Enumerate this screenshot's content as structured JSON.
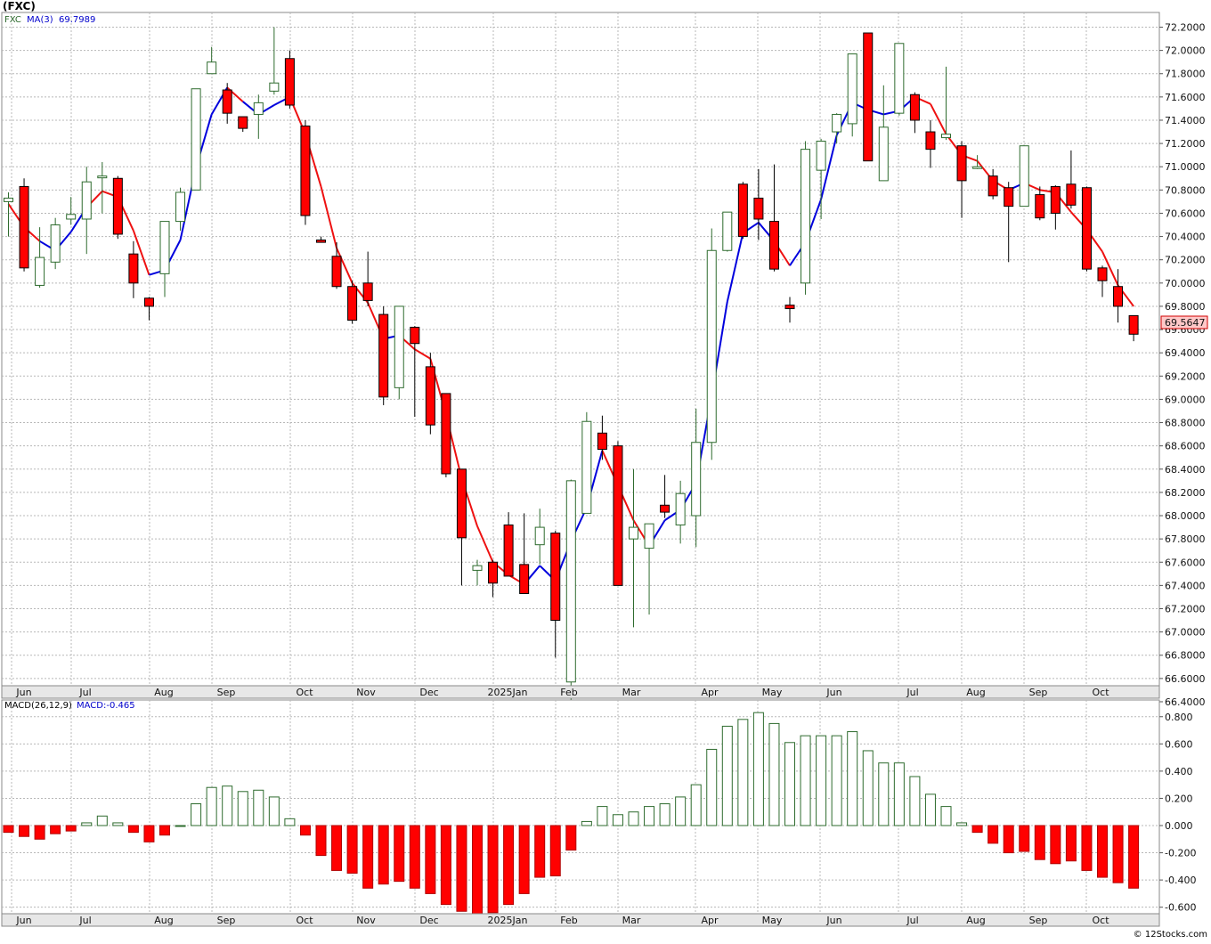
{
  "header": {
    "symbol_label": "(FXC)"
  },
  "price_panel": {
    "series_label": "FXC",
    "ma_label": "MA(3)",
    "ma_value": "69.7989",
    "last_price_label": "69.5647",
    "y_ticks": [
      "72.2000",
      "72.0000",
      "71.8000",
      "71.6000",
      "71.4000",
      "71.2000",
      "71.0000",
      "70.8000",
      "70.6000",
      "70.4000",
      "70.2000",
      "70.0000",
      "69.8000",
      "69.6000",
      "69.4000",
      "69.2000",
      "69.0000",
      "68.8000",
      "68.6000",
      "68.4000",
      "68.2000",
      "68.0000",
      "67.8000",
      "67.6000",
      "67.4000",
      "67.2000",
      "67.0000",
      "66.8000",
      "66.6000",
      "66.4000"
    ],
    "x_labels": [
      "Jun",
      "Jul",
      "Aug",
      "Sep",
      "Oct",
      "Nov",
      "Dec",
      "2025Jan",
      "Feb",
      "Mar",
      "Apr",
      "May",
      "Jun",
      "Jul",
      "Aug",
      "Sep",
      "Oct"
    ]
  },
  "macd_panel": {
    "label": "MACD(26,12,9)",
    "value_label": "MACD:-0.465",
    "y_ticks": [
      "0.800",
      "0.600",
      "0.400",
      "0.200",
      "0.000",
      "-0.200",
      "-0.400",
      "-0.600"
    ],
    "x_labels": [
      "Jun",
      "Jul",
      "Aug",
      "Sep",
      "Oct",
      "Nov",
      "Dec",
      "2025Jan",
      "Feb",
      "Mar",
      "Apr",
      "May",
      "Jun",
      "Jul",
      "Aug",
      "Sep",
      "Oct"
    ]
  },
  "footer": {
    "credit": "© 12Stocks.com"
  },
  "colors": {
    "up": "#2e6b2e",
    "down": "#ff0000",
    "ma_up": "#0000dd",
    "ma_down": "#ee1111",
    "grid": "#b8b8b8"
  },
  "chart_data": [
    {
      "type": "candlestick",
      "title": "(FXC)",
      "series_name": "FXC",
      "ylim": [
        66.35,
        72.25
      ],
      "x_month_labels": [
        "Jun",
        "Jul",
        "Aug",
        "Sep",
        "Oct",
        "Nov",
        "Dec",
        "2025Jan",
        "Feb",
        "Mar",
        "Apr",
        "May",
        "Jun",
        "Jul",
        "Aug",
        "Sep",
        "Oct"
      ],
      "ohlc": [
        [
          70.7,
          70.78,
          70.4,
          70.73
        ],
        [
          70.83,
          70.9,
          70.1,
          70.13
        ],
        [
          69.98,
          70.48,
          69.96,
          70.22
        ],
        [
          70.18,
          70.56,
          70.12,
          70.5
        ],
        [
          70.55,
          70.74,
          70.5,
          70.59
        ],
        [
          70.55,
          71.0,
          70.25,
          70.87
        ],
        [
          70.92,
          71.04,
          70.6,
          70.92
        ],
        [
          70.9,
          70.92,
          70.38,
          70.42
        ],
        [
          70.25,
          70.36,
          69.87,
          70.0
        ],
        [
          69.87,
          69.88,
          69.68,
          69.8
        ],
        [
          70.08,
          70.52,
          69.88,
          70.53
        ],
        [
          70.53,
          70.82,
          70.45,
          70.78
        ],
        [
          70.8,
          71.67,
          70.8,
          71.67
        ],
        [
          71.8,
          72.03,
          71.8,
          71.9
        ],
        [
          71.66,
          71.72,
          71.37,
          71.46
        ],
        [
          71.43,
          71.43,
          71.3,
          71.33
        ],
        [
          71.45,
          71.62,
          71.24,
          71.55
        ],
        [
          71.65,
          72.2,
          71.62,
          71.72
        ],
        [
          71.93,
          72.0,
          71.5,
          71.53
        ],
        [
          71.35,
          71.4,
          70.5,
          70.58
        ],
        [
          70.37,
          70.4,
          70.35,
          70.35
        ],
        [
          70.23,
          70.35,
          69.95,
          69.97
        ],
        [
          69.97,
          70.02,
          69.65,
          69.68
        ],
        [
          70.0,
          70.27,
          69.8,
          69.85
        ],
        [
          69.73,
          69.8,
          68.95,
          69.02
        ],
        [
          69.1,
          69.8,
          69.0,
          69.8
        ],
        [
          69.62,
          69.63,
          68.85,
          69.48
        ],
        [
          69.28,
          69.4,
          68.7,
          68.78
        ],
        [
          69.05,
          69.05,
          68.33,
          68.36
        ],
        [
          68.4,
          68.4,
          67.4,
          67.81
        ],
        [
          67.53,
          67.62,
          67.4,
          67.57
        ],
        [
          67.6,
          67.62,
          67.3,
          67.42
        ],
        [
          67.92,
          68.03,
          67.48,
          67.48
        ],
        [
          67.58,
          68.02,
          67.34,
          67.33
        ],
        [
          67.75,
          68.06,
          67.58,
          67.9
        ],
        [
          67.85,
          67.87,
          66.78,
          67.1
        ],
        [
          66.57,
          68.31,
          66.37,
          68.3
        ],
        [
          68.02,
          68.89,
          68.03,
          68.81
        ],
        [
          68.71,
          68.86,
          68.48,
          68.57
        ],
        [
          68.6,
          68.64,
          67.4,
          67.4
        ],
        [
          67.8,
          68.4,
          67.04,
          67.9
        ],
        [
          67.72,
          67.93,
          67.15,
          67.93
        ],
        [
          68.09,
          68.35,
          67.98,
          68.03
        ],
        [
          67.92,
          68.3,
          67.76,
          68.19
        ],
        [
          68.0,
          68.92,
          67.73,
          68.63
        ],
        [
          68.63,
          70.47,
          68.48,
          70.28
        ],
        [
          70.28,
          70.6,
          70.27,
          70.61
        ],
        [
          70.85,
          70.87,
          70.38,
          70.4
        ],
        [
          70.73,
          70.98,
          70.37,
          70.55
        ],
        [
          70.53,
          71.02,
          70.1,
          70.12
        ],
        [
          69.81,
          69.88,
          69.66,
          69.78
        ],
        [
          70.0,
          71.22,
          69.9,
          71.15
        ],
        [
          70.97,
          71.24,
          70.55,
          71.22
        ],
        [
          71.3,
          71.46,
          71.2,
          71.45
        ],
        [
          71.37,
          71.95,
          71.26,
          71.97
        ],
        [
          72.15,
          72.15,
          71.05,
          71.05
        ],
        [
          70.88,
          71.7,
          70.88,
          71.34
        ],
        [
          71.46,
          72.06,
          71.44,
          72.06
        ],
        [
          71.62,
          71.64,
          71.29,
          71.4
        ],
        [
          71.3,
          71.4,
          70.99,
          71.15
        ],
        [
          71.25,
          71.86,
          71.23,
          71.28
        ],
        [
          71.18,
          71.22,
          70.56,
          70.88
        ],
        [
          71.0,
          71.1,
          70.98,
          71.0
        ],
        [
          70.92,
          70.98,
          70.72,
          70.75
        ],
        [
          70.82,
          70.87,
          70.18,
          70.66
        ],
        [
          70.66,
          71.18,
          70.66,
          71.18
        ],
        [
          70.76,
          70.83,
          70.54,
          70.56
        ],
        [
          70.83,
          70.84,
          70.46,
          70.6
        ],
        [
          70.85,
          71.14,
          70.64,
          70.67
        ],
        [
          70.82,
          70.83,
          70.1,
          70.12
        ],
        [
          70.13,
          70.15,
          69.88,
          70.02
        ],
        [
          69.97,
          70.12,
          69.66,
          69.8
        ],
        [
          69.72,
          69.72,
          69.5,
          69.56
        ]
      ],
      "ma3": [
        70.68,
        70.48,
        70.36,
        70.28,
        70.44,
        70.65,
        70.79,
        70.74,
        70.45,
        70.07,
        70.11,
        70.37,
        70.99,
        71.45,
        71.68,
        71.56,
        71.45,
        71.53,
        71.6,
        71.28,
        70.83,
        70.3,
        70.0,
        69.83,
        69.52,
        69.55,
        69.43,
        69.35,
        68.87,
        68.32,
        67.91,
        67.6,
        67.49,
        67.41,
        67.57,
        67.44,
        67.78,
        68.07,
        68.56,
        68.26,
        67.96,
        67.74,
        67.96,
        68.05,
        68.28,
        69.03,
        69.84,
        70.43,
        70.52,
        70.36,
        70.15,
        70.35,
        70.72,
        71.27,
        71.55,
        71.49,
        71.45,
        71.48,
        71.6,
        71.54,
        71.28,
        71.1,
        71.05,
        70.88,
        70.8,
        70.86,
        70.8,
        70.78,
        70.61,
        70.46,
        70.27,
        69.98,
        69.8
      ],
      "ma3_direction": [
        "down",
        "down",
        "down",
        "up",
        "up",
        "up",
        "down",
        "down",
        "down",
        "down",
        "up",
        "up",
        "up",
        "up",
        "up",
        "down",
        "up",
        "up",
        "up",
        "down",
        "down",
        "down",
        "down",
        "down",
        "down",
        "up",
        "down",
        "down",
        "down",
        "down",
        "down",
        "down",
        "down",
        "down",
        "up",
        "up",
        "up",
        "up",
        "up",
        "down",
        "down",
        "down",
        "up",
        "up",
        "up",
        "up",
        "up",
        "up",
        "up",
        "up",
        "down",
        "up",
        "up",
        "up",
        "up",
        "up",
        "up",
        "up",
        "up",
        "down",
        "down",
        "down",
        "down",
        "down",
        "down",
        "up",
        "down",
        "down",
        "down",
        "down",
        "down",
        "down",
        "down"
      ]
    },
    {
      "type": "bar",
      "title": "MACD(26,12,9)",
      "series_name": "MACD",
      "ylim": [
        -0.66,
        0.88
      ],
      "values": [
        -0.05,
        -0.08,
        -0.1,
        -0.06,
        -0.04,
        0.02,
        0.07,
        0.02,
        -0.05,
        -0.12,
        -0.07,
        0.0,
        0.16,
        0.28,
        0.29,
        0.25,
        0.26,
        0.21,
        0.05,
        -0.07,
        -0.22,
        -0.33,
        -0.35,
        -0.46,
        -0.43,
        -0.41,
        -0.46,
        -0.5,
        -0.58,
        -0.63,
        -0.66,
        -0.64,
        -0.58,
        -0.5,
        -0.38,
        -0.37,
        -0.18,
        0.03,
        0.14,
        0.08,
        0.1,
        0.14,
        0.16,
        0.21,
        0.3,
        0.56,
        0.73,
        0.78,
        0.83,
        0.75,
        0.61,
        0.66,
        0.66,
        0.66,
        0.69,
        0.55,
        0.46,
        0.46,
        0.36,
        0.23,
        0.14,
        0.02,
        -0.05,
        -0.13,
        -0.2,
        -0.19,
        -0.25,
        -0.28,
        -0.26,
        -0.33,
        -0.38,
        -0.42,
        -0.46
      ]
    }
  ]
}
